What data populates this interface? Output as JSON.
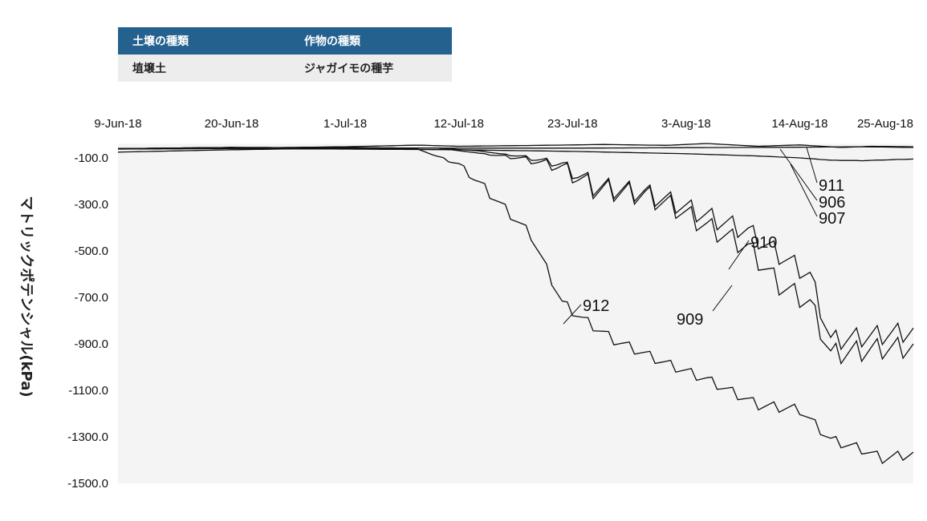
{
  "info_table": {
    "headers": [
      "土壌の種類",
      "作物の種類"
    ],
    "values": [
      "埴壌土",
      "ジャガイモの種芋"
    ]
  },
  "chart_data": {
    "type": "line",
    "ylabel": "マトリックポテンシャル(kPa)",
    "xlabel": "",
    "x_axis_position": "top",
    "x_ticks": [
      "9-Jun-18",
      "20-Jun-18",
      "1-Jul-18",
      "12-Jul-18",
      "23-Jul-18",
      "3-Aug-18",
      "14-Aug-18",
      "25-Aug-18"
    ],
    "xlim": [
      "2018-06-09",
      "2018-08-25"
    ],
    "y_ticks": [
      "-100.0",
      "-300.0",
      "-500.0",
      "-700.0",
      "-900.0",
      "-1100.0",
      "-1300.0",
      "-1500.0"
    ],
    "ylim": [
      -1500,
      -100
    ],
    "y_top_value": -40,
    "grid": false,
    "legend": "none",
    "colors": {
      "plot_background": "#f4f4f4",
      "line": "#111111"
    },
    "series": [
      {
        "name": "911",
        "points": [
          [
            "2018-06-09",
            -60
          ],
          [
            "2018-06-20",
            -58
          ],
          [
            "2018-07-01",
            -52
          ],
          [
            "2018-07-08",
            -45
          ],
          [
            "2018-07-12",
            -50
          ],
          [
            "2018-07-20",
            -46
          ],
          [
            "2018-07-26",
            -42
          ],
          [
            "2018-08-01",
            -46
          ],
          [
            "2018-08-05",
            -38
          ],
          [
            "2018-08-10",
            -50
          ],
          [
            "2018-08-14",
            -44
          ],
          [
            "2018-08-18",
            -55
          ],
          [
            "2018-08-21",
            -50
          ],
          [
            "2018-08-25",
            -52
          ]
        ]
      },
      {
        "name": "906",
        "points": [
          [
            "2018-06-09",
            -60
          ],
          [
            "2018-06-20",
            -55
          ],
          [
            "2018-07-01",
            -58
          ],
          [
            "2018-07-12",
            -58
          ],
          [
            "2018-07-23",
            -58
          ],
          [
            "2018-08-03",
            -56
          ],
          [
            "2018-08-14",
            -54
          ],
          [
            "2018-08-20",
            -52
          ],
          [
            "2018-08-25",
            -55
          ]
        ]
      },
      {
        "name": "907",
        "points": [
          [
            "2018-06-09",
            -62
          ],
          [
            "2018-06-20",
            -60
          ],
          [
            "2018-07-01",
            -62
          ],
          [
            "2018-07-12",
            -65
          ],
          [
            "2018-07-23",
            -72
          ],
          [
            "2018-08-03",
            -82
          ],
          [
            "2018-08-10",
            -92
          ],
          [
            "2018-08-14",
            -100
          ],
          [
            "2018-08-17",
            -110
          ],
          [
            "2018-08-20",
            -112
          ],
          [
            "2018-08-25",
            -105
          ]
        ]
      },
      {
        "name": "910",
        "points": [
          [
            "2018-06-09",
            -60
          ],
          [
            "2018-06-20",
            -55
          ],
          [
            "2018-07-01",
            -56
          ],
          [
            "2018-07-10",
            -58
          ],
          [
            "2018-07-14",
            -70
          ],
          [
            "2018-07-18",
            -95
          ],
          [
            "2018-07-22",
            -135
          ],
          [
            "2018-07-25",
            -235
          ],
          [
            "2018-07-30",
            -265
          ],
          [
            "2018-08-02",
            -310
          ],
          [
            "2018-08-05",
            -365
          ],
          [
            "2018-08-09",
            -430
          ],
          [
            "2018-08-12",
            -530
          ],
          [
            "2018-08-15",
            -620
          ],
          [
            "2018-08-17",
            -900
          ],
          [
            "2018-08-20",
            -885
          ],
          [
            "2018-08-22",
            -875
          ],
          [
            "2018-08-25",
            -860
          ]
        ]
      },
      {
        "name": "909",
        "points": [
          [
            "2018-06-09",
            -60
          ],
          [
            "2018-06-20",
            -55
          ],
          [
            "2018-07-01",
            -56
          ],
          [
            "2018-07-10",
            -58
          ],
          [
            "2018-07-14",
            -80
          ],
          [
            "2018-07-18",
            -105
          ],
          [
            "2018-07-22",
            -150
          ],
          [
            "2018-07-25",
            -245
          ],
          [
            "2018-07-30",
            -275
          ],
          [
            "2018-08-02",
            -330
          ],
          [
            "2018-08-05",
            -410
          ],
          [
            "2018-08-09",
            -500
          ],
          [
            "2018-08-12",
            -660
          ],
          [
            "2018-08-15",
            -740
          ],
          [
            "2018-08-17",
            -960
          ],
          [
            "2018-08-20",
            -945
          ],
          [
            "2018-08-22",
            -935
          ],
          [
            "2018-08-25",
            -930
          ]
        ]
      },
      {
        "name": "912",
        "points": [
          [
            "2018-06-09",
            -75
          ],
          [
            "2018-06-20",
            -65
          ],
          [
            "2018-07-01",
            -58
          ],
          [
            "2018-07-08",
            -62
          ],
          [
            "2018-07-12",
            -130
          ],
          [
            "2018-07-15",
            -260
          ],
          [
            "2018-07-19",
            -440
          ],
          [
            "2018-07-22",
            -730
          ],
          [
            "2018-07-24",
            -800
          ],
          [
            "2018-07-27",
            -890
          ],
          [
            "2018-08-01",
            -990
          ],
          [
            "2018-08-05",
            -1060
          ],
          [
            "2018-08-10",
            -1170
          ],
          [
            "2018-08-14",
            -1190
          ],
          [
            "2018-08-17",
            -1320
          ],
          [
            "2018-08-20",
            -1360
          ],
          [
            "2018-08-22",
            -1400
          ],
          [
            "2018-08-25",
            -1380
          ]
        ]
      }
    ]
  }
}
